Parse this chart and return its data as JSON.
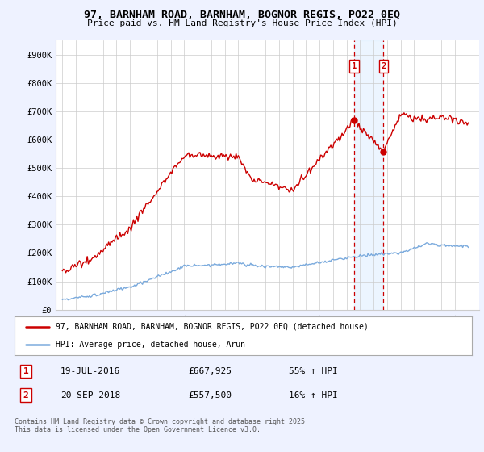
{
  "title": "97, BARNHAM ROAD, BARNHAM, BOGNOR REGIS, PO22 0EQ",
  "subtitle": "Price paid vs. HM Land Registry's House Price Index (HPI)",
  "ylim": [
    0,
    950000
  ],
  "yticks": [
    0,
    100000,
    200000,
    300000,
    400000,
    500000,
    600000,
    700000,
    800000,
    900000
  ],
  "ytick_labels": [
    "£0",
    "£100K",
    "£200K",
    "£300K",
    "£400K",
    "£500K",
    "£600K",
    "£700K",
    "£800K",
    "£900K"
  ],
  "transactions": [
    {
      "label": "1",
      "date": "19-JUL-2016",
      "price": 667925,
      "year": 2016.55,
      "hpi_pct": "55% ↑ HPI"
    },
    {
      "label": "2",
      "date": "20-SEP-2018",
      "price": 557500,
      "year": 2018.72,
      "hpi_pct": "16% ↑ HPI"
    }
  ],
  "legend_line1": "97, BARNHAM ROAD, BARNHAM, BOGNOR REGIS, PO22 0EQ (detached house)",
  "legend_line2": "HPI: Average price, detached house, Arun",
  "footnote": "Contains HM Land Registry data © Crown copyright and database right 2025.\nThis data is licensed under the Open Government Licence v3.0.",
  "line_color_red": "#cc0000",
  "line_color_blue": "#7aaadd",
  "background_color": "#eef2ff",
  "plot_bg": "#ffffff",
  "grid_color": "#cccccc",
  "vline_color": "#cc0000",
  "shade_color": "#ddeeff"
}
